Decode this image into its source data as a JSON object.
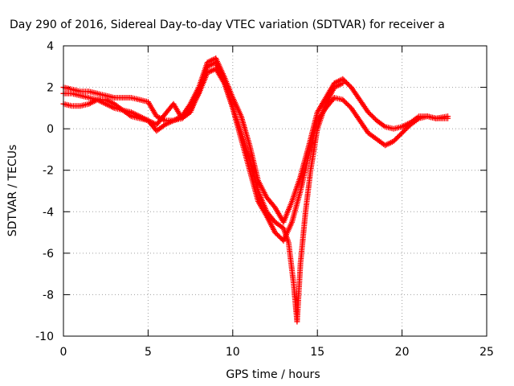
{
  "chart_data": {
    "type": "scatter",
    "title": "Day 290 of 2016, Sidereal Day-to-day VTEC variation (SDTVAR) for receiver a",
    "xlabel": "GPS time / hours",
    "ylabel": "SDTVAR / TECUs",
    "xlim": [
      0,
      25
    ],
    "ylim": [
      -10,
      4
    ],
    "x_ticks": [
      "0",
      "5",
      "10",
      "15",
      "20",
      "25"
    ],
    "y_ticks": [
      "4",
      "2",
      "0",
      "-2",
      "-4",
      "-6",
      "-8",
      "-10"
    ],
    "grid": true,
    "marker": "+",
    "color": "#ff0000",
    "series": [
      {
        "x": [
          0.0,
          0.5,
          1.0,
          1.5,
          2.0,
          2.5,
          3.0,
          3.5,
          4.0,
          4.5,
          5.0,
          5.5,
          6.0,
          6.5,
          7.0,
          7.5,
          8.0,
          8.5,
          9.0,
          9.5,
          10.0,
          10.5,
          11.0,
          11.5,
          12.0,
          12.5,
          13.0,
          13.5,
          14.0,
          14.5,
          15.0,
          15.5,
          16.0,
          16.5,
          17.0,
          17.5,
          18.0,
          18.5,
          19.0,
          19.5,
          20.0,
          20.5,
          21.0,
          21.5,
          22.0,
          22.7
        ],
        "y": [
          2.0,
          1.9,
          1.8,
          1.8,
          1.7,
          1.6,
          1.5,
          1.5,
          1.5,
          1.4,
          1.3,
          0.6,
          0.4,
          0.4,
          0.6,
          1.2,
          2.0,
          3.2,
          3.4,
          2.5,
          1.5,
          0.6,
          -0.8,
          -2.5,
          -3.3,
          -3.8,
          -4.5,
          -3.5,
          -2.3,
          -0.8,
          0.8,
          1.5,
          2.2,
          2.4,
          2.0,
          1.4,
          0.8,
          0.4,
          0.1,
          0.0,
          0.1,
          0.3,
          0.6,
          0.6,
          0.5,
          0.6
        ]
      },
      {
        "x": [
          0.0,
          0.5,
          1.0,
          1.5,
          2.0,
          2.5,
          3.0,
          3.5,
          4.0,
          4.5,
          5.0,
          5.5,
          6.0,
          6.5,
          7.0,
          7.5,
          8.0,
          8.5,
          9.0,
          9.5,
          10.0,
          10.5,
          11.0,
          11.5,
          12.0,
          12.5,
          13.0,
          13.5,
          14.0,
          14.5,
          15.0,
          15.5,
          16.0,
          16.5,
          17.0,
          17.5,
          18.0,
          18.5,
          19.0,
          19.5,
          20.0,
          20.5,
          21.0,
          21.5,
          22.0,
          22.7
        ],
        "y": [
          1.7,
          1.7,
          1.6,
          1.5,
          1.4,
          1.2,
          1.0,
          0.9,
          0.8,
          0.6,
          0.4,
          -0.1,
          0.2,
          0.4,
          0.5,
          0.9,
          1.7,
          2.7,
          2.9,
          2.2,
          1.0,
          -0.5,
          -2.0,
          -3.5,
          -4.2,
          -5.0,
          -5.4,
          -4.5,
          -3.0,
          -1.2,
          0.4,
          1.0,
          1.5,
          1.4,
          1.0,
          0.4,
          -0.2,
          -0.5,
          -0.8,
          -0.6,
          -0.2,
          0.2,
          0.5,
          0.6,
          0.5,
          0.5
        ]
      },
      {
        "x": [
          0.0,
          0.5,
          1.0,
          1.5,
          2.0,
          2.5,
          3.0,
          3.5,
          4.0,
          4.5,
          5.0,
          5.5,
          6.0,
          6.5,
          7.0,
          7.5,
          8.0,
          8.5,
          9.0,
          9.5,
          10.0,
          10.5,
          11.0,
          11.5,
          12.0,
          12.5,
          13.0,
          13.3,
          13.6,
          13.8,
          14.0,
          14.3,
          14.6,
          15.0,
          15.5,
          16.0,
          16.5
        ],
        "y": [
          1.2,
          1.1,
          1.1,
          1.2,
          1.4,
          1.4,
          1.2,
          0.9,
          0.6,
          0.5,
          0.4,
          0.2,
          0.7,
          1.2,
          0.5,
          0.8,
          1.8,
          3.0,
          3.2,
          2.3,
          1.0,
          -0.2,
          -1.5,
          -3.0,
          -4.0,
          -4.5,
          -4.8,
          -5.5,
          -7.5,
          -9.3,
          -6.5,
          -4.0,
          -2.0,
          0.0,
          1.2,
          2.0,
          2.2
        ]
      }
    ]
  }
}
